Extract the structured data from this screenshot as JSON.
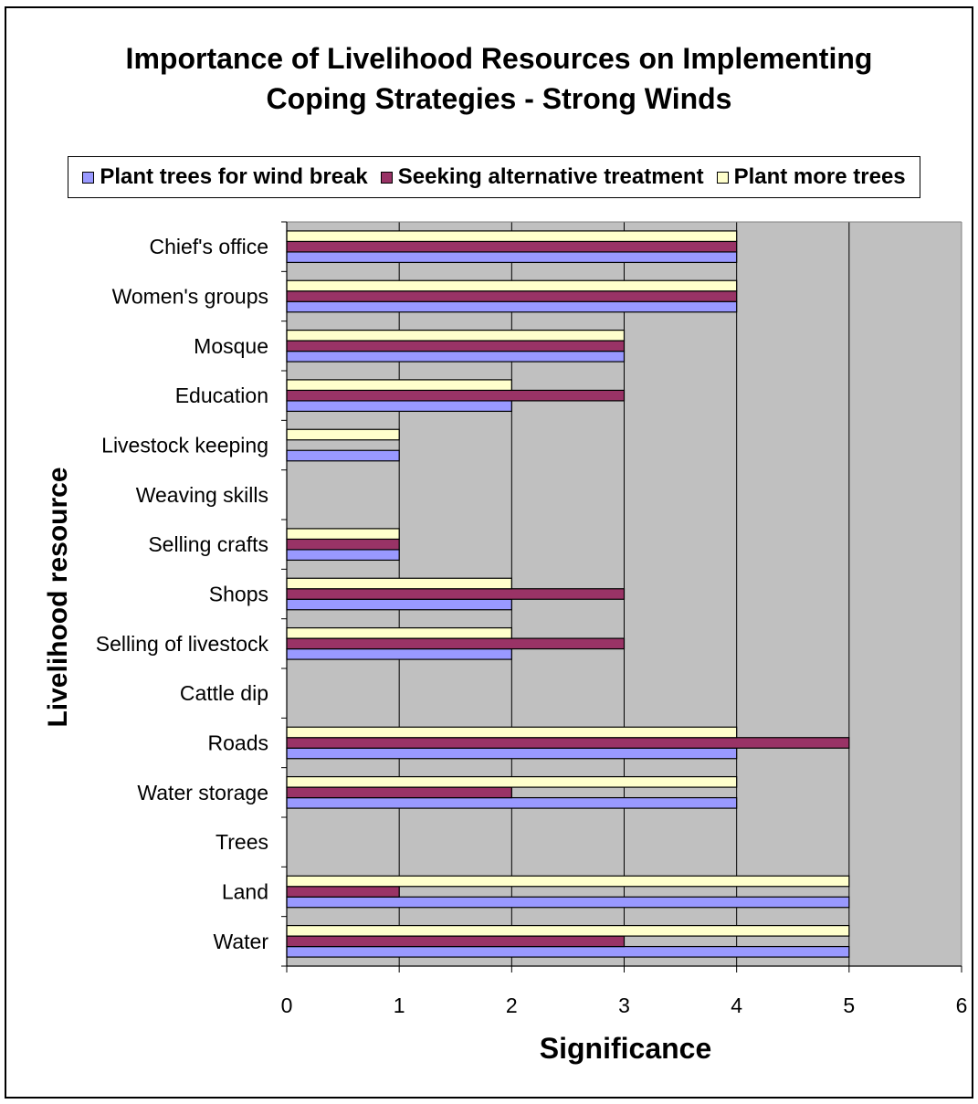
{
  "chart_data": {
    "type": "bar",
    "orientation": "horizontal",
    "title": [
      "Importance of Livelihood Resources on Implementing",
      "Coping Strategies - Strong Winds"
    ],
    "xlabel": "Significance",
    "ylabel": "Livelihood resource",
    "xlim": [
      0,
      6
    ],
    "xticks": [
      "0",
      "1",
      "2",
      "3",
      "4",
      "5",
      "6"
    ],
    "grid": true,
    "legend_position": "top",
    "plot_background": "#c0c0c0",
    "categories": [
      "Water",
      "Land",
      "Trees",
      "Water storage",
      "Roads",
      "Cattle dip",
      "Selling of livestock",
      "Shops",
      "Selling crafts",
      "Weaving skills",
      "Livestock keeping",
      "Education",
      "Mosque",
      "Women's groups",
      "Chief's office"
    ],
    "series": [
      {
        "name": "Plant trees for wind break",
        "color": "#9999ff",
        "values": [
          5,
          5,
          0,
          4,
          4,
          0,
          2,
          2,
          1,
          0,
          1,
          2,
          3,
          4,
          4
        ]
      },
      {
        "name": "Seeking alternative treatment",
        "color": "#993366",
        "values": [
          3,
          1,
          0,
          2,
          5,
          0,
          3,
          3,
          1,
          0,
          0,
          3,
          3,
          4,
          4
        ]
      },
      {
        "name": "Plant more trees",
        "color": "#ffffcc",
        "values": [
          5,
          5,
          0,
          4,
          4,
          0,
          2,
          2,
          1,
          0,
          1,
          2,
          3,
          4,
          4
        ]
      }
    ]
  }
}
